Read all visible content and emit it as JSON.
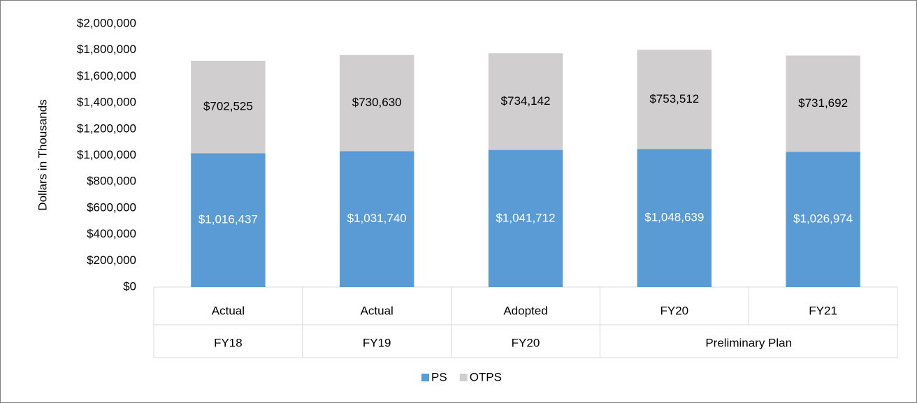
{
  "chart_data": {
    "type": "stacked_bar",
    "y_axis_label": "Dollars in Thousands",
    "categories": [
      "Actual",
      "Actual",
      "Adopted",
      "FY20",
      "FY21"
    ],
    "category_groups": [
      {
        "name": "FY18",
        "count": 1
      },
      {
        "name": "FY19",
        "count": 1
      },
      {
        "name": "FY20",
        "count": 1
      },
      {
        "name": "Preliminary Plan",
        "count": 2
      }
    ],
    "series": [
      {
        "name": "PS",
        "color": "#5b9bd5",
        "label_color": "#ffffff",
        "values": [
          1016437,
          1031740,
          1041712,
          1048639,
          1026974
        ],
        "value_labels": [
          "$1,016,437",
          "$1,031,740",
          "$1,041,712",
          "$1,048,639",
          "$1,026,974"
        ]
      },
      {
        "name": "OTPS",
        "color": "#d0cece",
        "label_color": "#000000",
        "values": [
          702525,
          730630,
          734142,
          753512,
          731692
        ],
        "value_labels": [
          "$702,525",
          "$730,630",
          "$734,142",
          "$753,512",
          "$731,692"
        ]
      }
    ],
    "ylim": [
      0,
      2000000
    ],
    "yticks": [
      {
        "value": 0,
        "label": "$0"
      },
      {
        "value": 200000,
        "label": "$200,000"
      },
      {
        "value": 400000,
        "label": "$400,000"
      },
      {
        "value": 600000,
        "label": "$600,000"
      },
      {
        "value": 800000,
        "label": "$800,000"
      },
      {
        "value": 1000000,
        "label": "$1,000,000"
      },
      {
        "value": 1200000,
        "label": "$1,200,000"
      },
      {
        "value": 1400000,
        "label": "$1,400,000"
      },
      {
        "value": 1600000,
        "label": "$1,600,000"
      },
      {
        "value": 1800000,
        "label": "$1,800,000"
      },
      {
        "value": 2000000,
        "label": "$2,000,000"
      }
    ],
    "grid": false,
    "legend": "bottom"
  }
}
